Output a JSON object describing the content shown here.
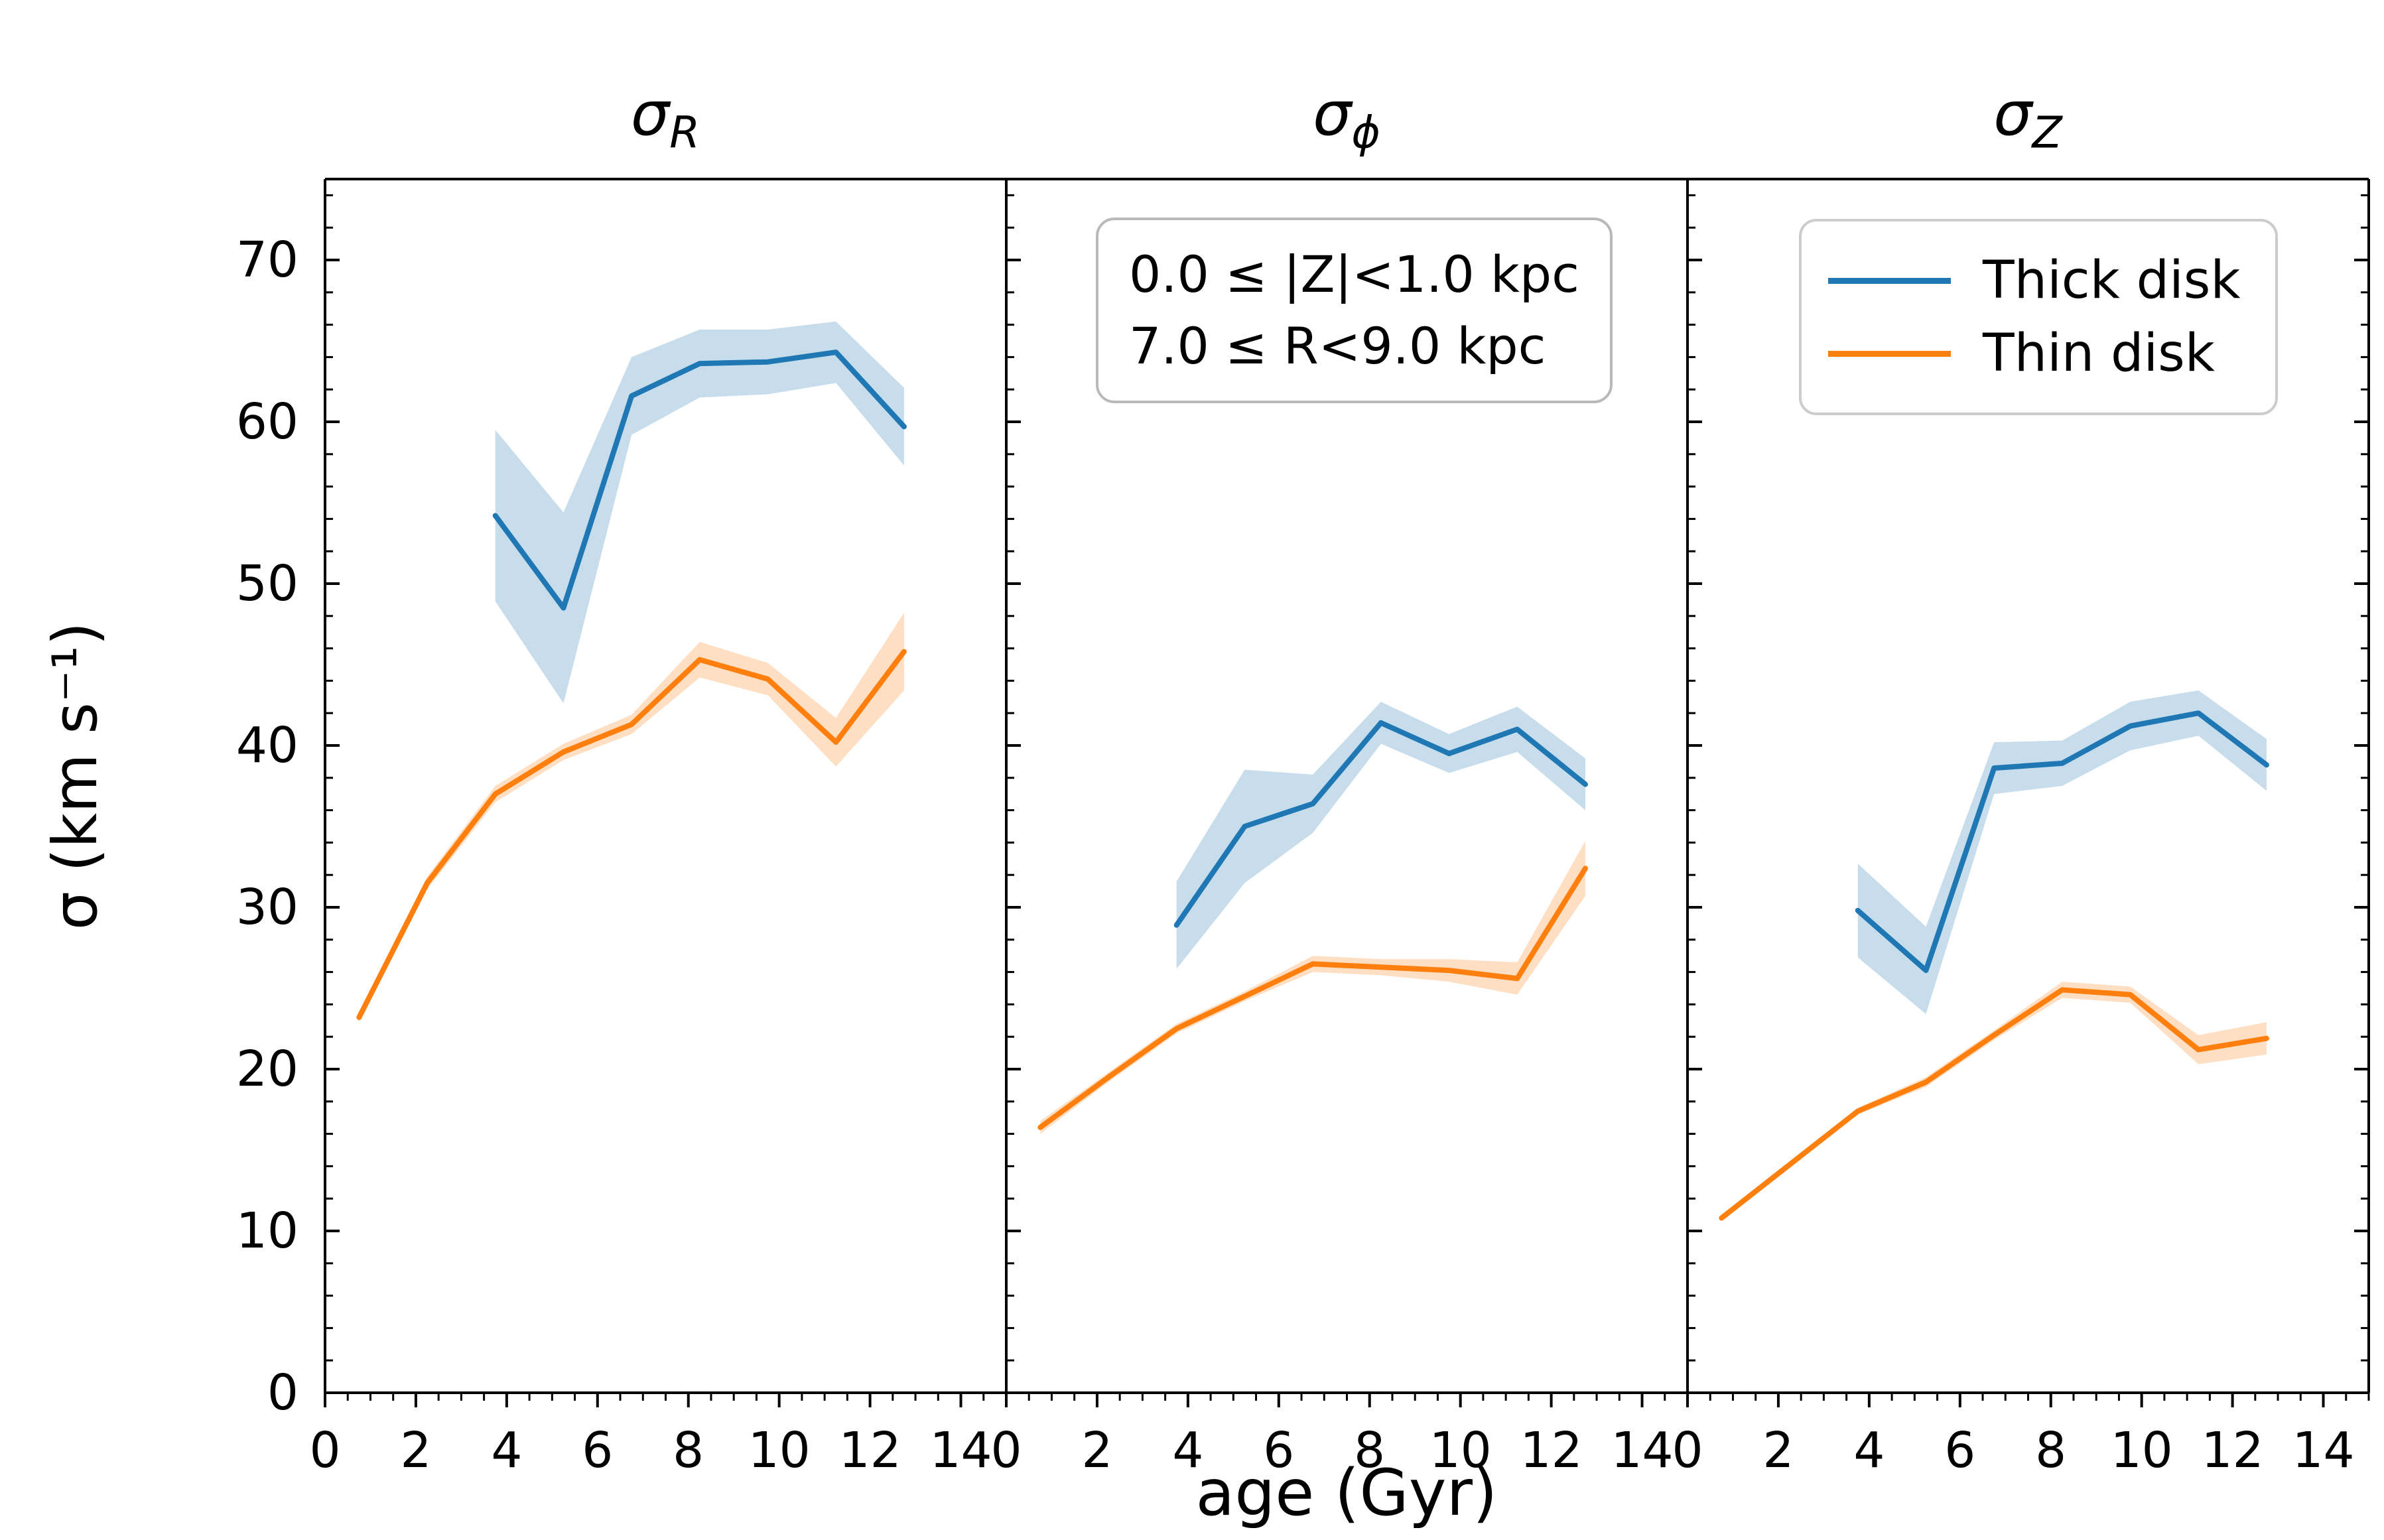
{
  "figure": {
    "ylabel": "σ (km s⁻¹)",
    "xlabel": "age (Gyr)",
    "background": "#ffffff"
  },
  "annotation": {
    "line1": "0.0 ≤ |Z|<1.0 kpc",
    "line2": "7.0 ≤ R<9.0 kpc"
  },
  "legend": {
    "items": [
      {
        "label": "Thick disk",
        "color": "#1f77b4"
      },
      {
        "label": "Thin disk",
        "color": "#ff7f0e"
      }
    ]
  },
  "chart_data": {
    "type": "line",
    "xlabel": "age (Gyr)",
    "ylabel": "σ (km s⁻¹)",
    "xlim": [
      0,
      15
    ],
    "ylim": [
      0,
      75
    ],
    "xticks": [
      0,
      2,
      4,
      6,
      8,
      10,
      12,
      14
    ],
    "yticks": [
      0,
      10,
      20,
      30,
      40,
      50,
      60,
      70
    ],
    "x_minor_step": 0.5,
    "y_minor_step": 2,
    "grid": false,
    "band_opacity": 0.25,
    "legend_position": "upper right panel",
    "panels": [
      {
        "title_main": "σ",
        "title_sub": "R",
        "series": [
          {
            "name": "Thick disk",
            "color": "#1f77b4",
            "x": [
              3.75,
              5.25,
              6.75,
              8.25,
              9.75,
              11.25,
              12.75
            ],
            "y": [
              54.2,
              48.5,
              61.6,
              63.6,
              63.7,
              64.3,
              59.7
            ],
            "err": [
              5.3,
              5.9,
              2.4,
              2.1,
              2.0,
              1.9,
              2.4
            ]
          },
          {
            "name": "Thin disk",
            "color": "#ff7f0e",
            "x": [
              0.75,
              2.25,
              3.75,
              5.25,
              6.75,
              8.25,
              9.75,
              11.25,
              12.75
            ],
            "y": [
              23.2,
              31.5,
              37.0,
              39.6,
              41.3,
              45.3,
              44.1,
              40.2,
              45.8
            ],
            "err": [
              0.3,
              0.4,
              0.5,
              0.5,
              0.6,
              1.1,
              1.0,
              1.5,
              2.4
            ]
          }
        ]
      },
      {
        "title_main": "σ",
        "title_sub": "ϕ",
        "series": [
          {
            "name": "Thick disk",
            "color": "#1f77b4",
            "x": [
              3.75,
              5.25,
              6.75,
              8.25,
              9.75,
              11.25,
              12.75
            ],
            "y": [
              28.9,
              35.0,
              36.4,
              41.4,
              39.5,
              41.0,
              37.6
            ],
            "err": [
              2.7,
              3.5,
              1.8,
              1.3,
              1.2,
              1.4,
              1.6
            ]
          },
          {
            "name": "Thin disk",
            "color": "#ff7f0e",
            "x": [
              0.75,
              2.25,
              3.75,
              5.25,
              6.75,
              8.25,
              9.75,
              11.25,
              12.75
            ],
            "y": [
              16.4,
              19.5,
              22.5,
              24.5,
              26.5,
              26.3,
              26.1,
              25.6,
              32.4
            ],
            "err": [
              0.4,
              0.3,
              0.3,
              0.3,
              0.5,
              0.5,
              0.7,
              1.0,
              1.7
            ]
          }
        ]
      },
      {
        "title_main": "σ",
        "title_sub": "Z",
        "series": [
          {
            "name": "Thick disk",
            "color": "#1f77b4",
            "x": [
              3.75,
              5.25,
              6.75,
              8.25,
              9.75,
              11.25,
              12.75
            ],
            "y": [
              29.8,
              26.1,
              38.6,
              38.9,
              41.2,
              42.0,
              38.8
            ],
            "err": [
              2.9,
              2.7,
              1.6,
              1.4,
              1.5,
              1.4,
              1.6
            ]
          },
          {
            "name": "Thin disk",
            "color": "#ff7f0e",
            "x": [
              0.75,
              2.25,
              3.75,
              5.25,
              6.75,
              8.25,
              9.75,
              11.25,
              12.75
            ],
            "y": [
              10.8,
              14.1,
              17.4,
              19.2,
              22.1,
              24.9,
              24.6,
              21.2,
              21.9
            ],
            "err": [
              0.2,
              0.2,
              0.2,
              0.3,
              0.3,
              0.5,
              0.5,
              0.9,
              1.0
            ]
          }
        ]
      }
    ]
  }
}
